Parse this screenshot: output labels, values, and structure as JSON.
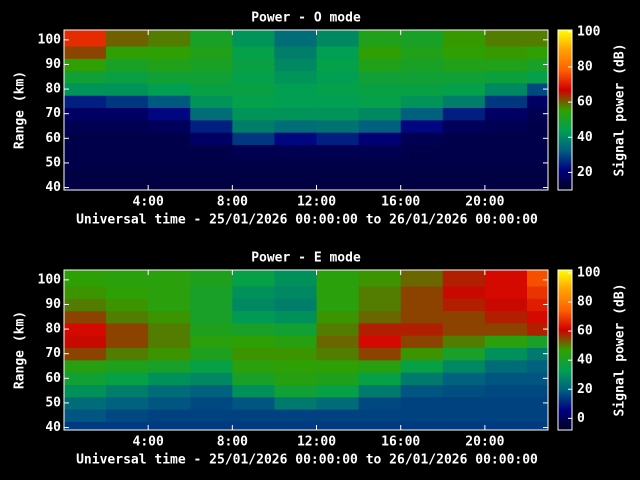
{
  "chart_data": [
    {
      "type": "heatmap",
      "title": "Power - O mode",
      "x_label": "Universal time - 25/01/2026 00:00:00 to 26/01/2026 00:00:00",
      "y_label": "Range (km)",
      "colorbar_label": "Signal power (dB)",
      "x": [
        0,
        2,
        4,
        6,
        8,
        10,
        12,
        14,
        16,
        18,
        20,
        22,
        23
      ],
      "y": [
        39,
        42.5,
        47.5,
        52.5,
        57.5,
        62.5,
        67.5,
        72.5,
        77.5,
        82.5,
        87.5,
        92.5,
        97.5,
        104
      ],
      "z": [
        [
          14,
          14,
          14,
          14,
          14,
          14,
          14,
          14,
          14,
          14,
          14,
          14
        ],
        [
          14,
          14,
          14,
          14,
          14,
          14,
          14,
          14,
          14,
          14,
          14,
          14
        ],
        [
          15,
          15,
          15,
          15,
          15,
          15,
          15,
          15,
          15,
          15,
          15,
          15
        ],
        [
          15,
          15,
          15,
          15,
          16,
          16,
          16,
          16,
          15,
          15,
          15,
          15
        ],
        [
          15,
          15,
          15,
          18,
          28,
          22,
          25,
          20,
          16,
          15,
          15,
          15
        ],
        [
          16,
          16,
          17,
          25,
          38,
          35,
          36,
          33,
          22,
          17,
          16,
          15
        ],
        [
          18,
          18,
          22,
          35,
          42,
          42,
          42,
          40,
          33,
          25,
          18,
          16
        ],
        [
          25,
          28,
          32,
          42,
          45,
          44,
          44,
          45,
          42,
          38,
          28,
          18
        ],
        [
          42,
          42,
          44,
          46,
          46,
          44,
          45,
          46,
          46,
          45,
          40,
          30
        ],
        [
          48,
          46,
          48,
          48,
          45,
          42,
          44,
          48,
          48,
          48,
          47,
          45
        ],
        [
          55,
          50,
          52,
          50,
          46,
          40,
          45,
          52,
          50,
          52,
          52,
          50
        ],
        [
          62,
          55,
          55,
          52,
          45,
          38,
          44,
          55,
          52,
          55,
          56,
          55
        ],
        [
          72,
          60,
          58,
          50,
          42,
          35,
          40,
          52,
          50,
          56,
          58,
          58
        ]
      ],
      "xlim": [
        0,
        23
      ],
      "ylim": [
        39,
        104
      ],
      "xticks": [
        {
          "value": 4,
          "label": "4:00"
        },
        {
          "value": 8,
          "label": "8:00"
        },
        {
          "value": 12,
          "label": "12:00"
        },
        {
          "value": 16,
          "label": "16:00"
        },
        {
          "value": 20,
          "label": "20:00"
        }
      ],
      "yticks": [
        40,
        50,
        60,
        70,
        80,
        90,
        100
      ],
      "clim": [
        10,
        101
      ],
      "cticks": [
        20,
        40,
        60,
        80,
        100
      ],
      "colormap": [
        "#000020",
        "#000080",
        "#006080",
        "#00a050",
        "#30a000",
        "#d00000",
        "#ff6000",
        "#ffa000",
        "#ffff00"
      ]
    },
    {
      "type": "heatmap",
      "title": "Power - E mode",
      "x_label": "Universal time - 25/01/2026 00:00:00 to 26/01/2026 00:00:00",
      "y_label": "Range (km)",
      "colorbar_label": "Signal power (dB)",
      "x": [
        0,
        2,
        4,
        6,
        8,
        10,
        12,
        14,
        16,
        18,
        20,
        22,
        23
      ],
      "y": [
        39,
        42.5,
        47.5,
        52.5,
        57.5,
        62.5,
        67.5,
        72.5,
        77.5,
        82.5,
        87.5,
        92.5,
        97.5,
        104
      ],
      "z": [
        [
          14,
          14,
          14,
          14,
          14,
          14,
          14,
          14,
          14,
          14,
          14,
          14
        ],
        [
          18,
          16,
          15,
          15,
          15,
          15,
          15,
          15,
          15,
          15,
          15,
          15
        ],
        [
          22,
          20,
          18,
          16,
          18,
          25,
          22,
          16,
          15,
          15,
          15,
          15
        ],
        [
          30,
          26,
          22,
          20,
          30,
          38,
          35,
          25,
          18,
          17,
          16,
          16
        ],
        [
          38,
          35,
          30,
          28,
          40,
          44,
          42,
          35,
          25,
          20,
          18,
          18
        ],
        [
          44,
          42,
          40,
          35,
          45,
          46,
          46,
          44,
          35,
          28,
          22,
          20
        ],
        [
          55,
          50,
          48,
          42,
          48,
          48,
          50,
          55,
          48,
          40,
          30,
          25
        ],
        [
          60,
          55,
          50,
          45,
          46,
          44,
          52,
          62,
          55,
          50,
          45,
          40
        ],
        [
          62,
          55,
          50,
          42,
          40,
          38,
          50,
          58,
          58,
          55,
          55,
          58
        ],
        [
          55,
          50,
          48,
          40,
          32,
          30,
          48,
          52,
          55,
          55,
          58,
          62
        ],
        [
          50,
          48,
          45,
          40,
          28,
          26,
          45,
          50,
          55,
          58,
          60,
          65
        ],
        [
          48,
          46,
          45,
          40,
          30,
          28,
          45,
          50,
          55,
          60,
          62,
          68
        ],
        [
          46,
          45,
          45,
          42,
          35,
          30,
          45,
          48,
          52,
          58,
          62,
          72
        ]
      ],
      "xlim": [
        0,
        23
      ],
      "ylim": [
        39,
        104
      ],
      "xticks": [
        {
          "value": 4,
          "label": "4:00"
        },
        {
          "value": 8,
          "label": "8:00"
        },
        {
          "value": 12,
          "label": "12:00"
        },
        {
          "value": 16,
          "label": "16:00"
        },
        {
          "value": 20,
          "label": "20:00"
        }
      ],
      "yticks": [
        40,
        50,
        60,
        70,
        80,
        90,
        100
      ],
      "clim": [
        -8,
        102
      ],
      "cticks": [
        0,
        20,
        40,
        60,
        80,
        100
      ],
      "colormap": [
        "#000020",
        "#000080",
        "#006080",
        "#00a050",
        "#30a000",
        "#d00000",
        "#ff6000",
        "#ffa000",
        "#ffff00"
      ]
    }
  ]
}
